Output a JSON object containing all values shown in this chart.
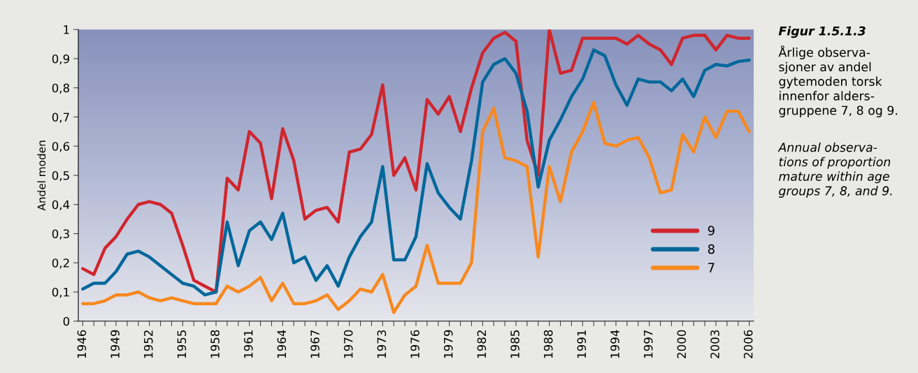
{
  "chart_data": {
    "type": "line",
    "ylabel": "Andel moden",
    "x": [
      1946,
      1947,
      1948,
      1949,
      1950,
      1951,
      1952,
      1953,
      1954,
      1955,
      1956,
      1957,
      1958,
      1959,
      1960,
      1961,
      1962,
      1963,
      1964,
      1965,
      1966,
      1967,
      1968,
      1969,
      1970,
      1971,
      1972,
      1973,
      1974,
      1975,
      1976,
      1977,
      1978,
      1979,
      1980,
      1981,
      1982,
      1983,
      1984,
      1985,
      1986,
      1987,
      1988,
      1989,
      1990,
      1991,
      1992,
      1993,
      1994,
      1995,
      1996,
      1997,
      1998,
      1999,
      2000,
      2001,
      2002,
      2003,
      2004,
      2005,
      2006
    ],
    "series": [
      {
        "name": "9",
        "color": "#d0262e",
        "values": [
          0.18,
          0.16,
          0.25,
          0.29,
          0.35,
          0.4,
          0.41,
          0.4,
          0.37,
          0.26,
          0.14,
          0.12,
          0.1,
          0.49,
          0.45,
          0.65,
          0.61,
          0.42,
          0.66,
          0.55,
          0.35,
          0.38,
          0.39,
          0.34,
          0.58,
          0.59,
          0.64,
          0.81,
          0.5,
          0.56,
          0.45,
          0.76,
          0.71,
          0.77,
          0.65,
          0.8,
          0.92,
          0.97,
          0.99,
          0.96,
          0.62,
          0.5,
          1.0,
          0.85,
          0.86,
          0.97,
          0.97,
          0.97,
          0.97,
          0.95,
          0.98,
          0.95,
          0.93,
          0.88,
          0.97,
          0.98,
          0.98,
          0.93,
          0.98,
          0.97,
          0.97
        ]
      },
      {
        "name": "8",
        "color": "#00679b",
        "values": [
          0.11,
          0.13,
          0.13,
          0.17,
          0.23,
          0.24,
          0.22,
          0.19,
          0.16,
          0.13,
          0.12,
          0.09,
          0.1,
          0.34,
          0.19,
          0.31,
          0.34,
          0.28,
          0.37,
          0.2,
          0.22,
          0.14,
          0.19,
          0.12,
          0.22,
          0.29,
          0.34,
          0.53,
          0.21,
          0.21,
          0.29,
          0.54,
          0.44,
          0.39,
          0.35,
          0.55,
          0.82,
          0.88,
          0.9,
          0.85,
          0.72,
          0.46,
          0.62,
          0.69,
          0.77,
          0.83,
          0.93,
          0.91,
          0.81,
          0.74,
          0.83,
          0.82,
          0.82,
          0.79,
          0.83,
          0.77,
          0.86,
          0.88,
          0.875,
          0.89,
          0.895
        ]
      },
      {
        "name": "7",
        "color": "#f7891f",
        "values": [
          0.06,
          0.06,
          0.07,
          0.09,
          0.09,
          0.1,
          0.08,
          0.07,
          0.08,
          0.07,
          0.06,
          0.06,
          0.06,
          0.12,
          0.1,
          0.12,
          0.15,
          0.07,
          0.13,
          0.06,
          0.06,
          0.07,
          0.09,
          0.04,
          0.07,
          0.11,
          0.1,
          0.16,
          0.03,
          0.09,
          0.12,
          0.26,
          0.13,
          0.13,
          0.13,
          0.2,
          0.65,
          0.73,
          0.56,
          0.55,
          0.53,
          0.22,
          0.53,
          0.41,
          0.58,
          0.65,
          0.75,
          0.61,
          0.6,
          0.62,
          0.63,
          0.56,
          0.44,
          0.45,
          0.64,
          0.58,
          0.7,
          0.63,
          0.72,
          0.72,
          0.65
        ]
      }
    ],
    "xlim": [
      1945.6,
      2006.4
    ],
    "xticks": [
      1946,
      {
        "value": 1947,
        "label": null
      },
      {
        "value": 1948,
        "label": null
      },
      1949,
      {
        "value": 1950,
        "label": null
      },
      {
        "value": 1951,
        "label": null
      },
      1952,
      {
        "value": 1953,
        "label": null
      },
      {
        "value": 1954,
        "label": null
      },
      1955,
      {
        "value": 1956,
        "label": null
      },
      {
        "value": 1957,
        "label": null
      },
      1958,
      {
        "value": 1959,
        "label": null
      },
      {
        "value": 1960,
        "label": null
      },
      1961,
      {
        "value": 1962,
        "label": null
      },
      {
        "value": 1963,
        "label": null
      },
      1964,
      {
        "value": 1965,
        "label": null
      },
      {
        "value": 1966,
        "label": null
      },
      1967,
      {
        "value": 1968,
        "label": null
      },
      {
        "value": 1969,
        "label": null
      },
      1970,
      {
        "value": 1971,
        "label": null
      },
      {
        "value": 1972,
        "label": null
      },
      1973,
      {
        "value": 1974,
        "label": null
      },
      {
        "value": 1975,
        "label": null
      },
      1976,
      {
        "value": 1977,
        "label": null
      },
      {
        "value": 1978,
        "label": null
      },
      1979,
      {
        "value": 1980,
        "label": null
      },
      {
        "value": 1981,
        "label": null
      },
      1982,
      {
        "value": 1983,
        "label": null
      },
      {
        "value": 1984,
        "label": null
      },
      1985,
      {
        "value": 1986,
        "label": null
      },
      {
        "value": 1987,
        "label": null
      },
      1988,
      {
        "value": 1989,
        "label": null
      },
      {
        "value": 1990,
        "label": null
      },
      1991,
      {
        "value": 1992,
        "label": null
      },
      {
        "value": 1993,
        "label": null
      },
      1994,
      {
        "value": 1995,
        "label": null
      },
      {
        "value": 1996,
        "label": null
      },
      1997,
      {
        "value": 1998,
        "label": null
      },
      {
        "value": 1999,
        "label": null
      },
      2000,
      {
        "value": 2001,
        "label": null
      },
      {
        "value": 2002,
        "label": null
      },
      2003,
      {
        "value": 2004,
        "label": null
      },
      {
        "value": 2005,
        "label": null
      },
      2006
    ],
    "ylim": [
      0,
      1
    ],
    "yticks": [
      0,
      {
        "value": 0.1,
        "label": "0,1"
      },
      {
        "value": 0.2,
        "label": "0,2"
      },
      {
        "value": 0.3,
        "label": "0,3"
      },
      {
        "value": 0.4,
        "label": "0,4"
      },
      {
        "value": 0.5,
        "label": "0,5"
      },
      {
        "value": 0.6,
        "label": "0,6"
      },
      {
        "value": 0.7,
        "label": "0,7"
      },
      {
        "value": 0.8,
        "label": "0,8"
      },
      {
        "value": 0.9,
        "label": "0,9"
      },
      1
    ],
    "grid": false,
    "legend": "bottom right",
    "marker": "none",
    "line_style": "solid",
    "annotations": [
      "Figur 1.5.1.3",
      "Årlige observa-\nsjoner av andel\ngytemoden torsk\ninnenfor alders-\ngruppene 7, 8 og 9.",
      "Annual observa-\ntions of proportion\nmature within age\ngroups 7, 8, and 9."
    ]
  }
}
